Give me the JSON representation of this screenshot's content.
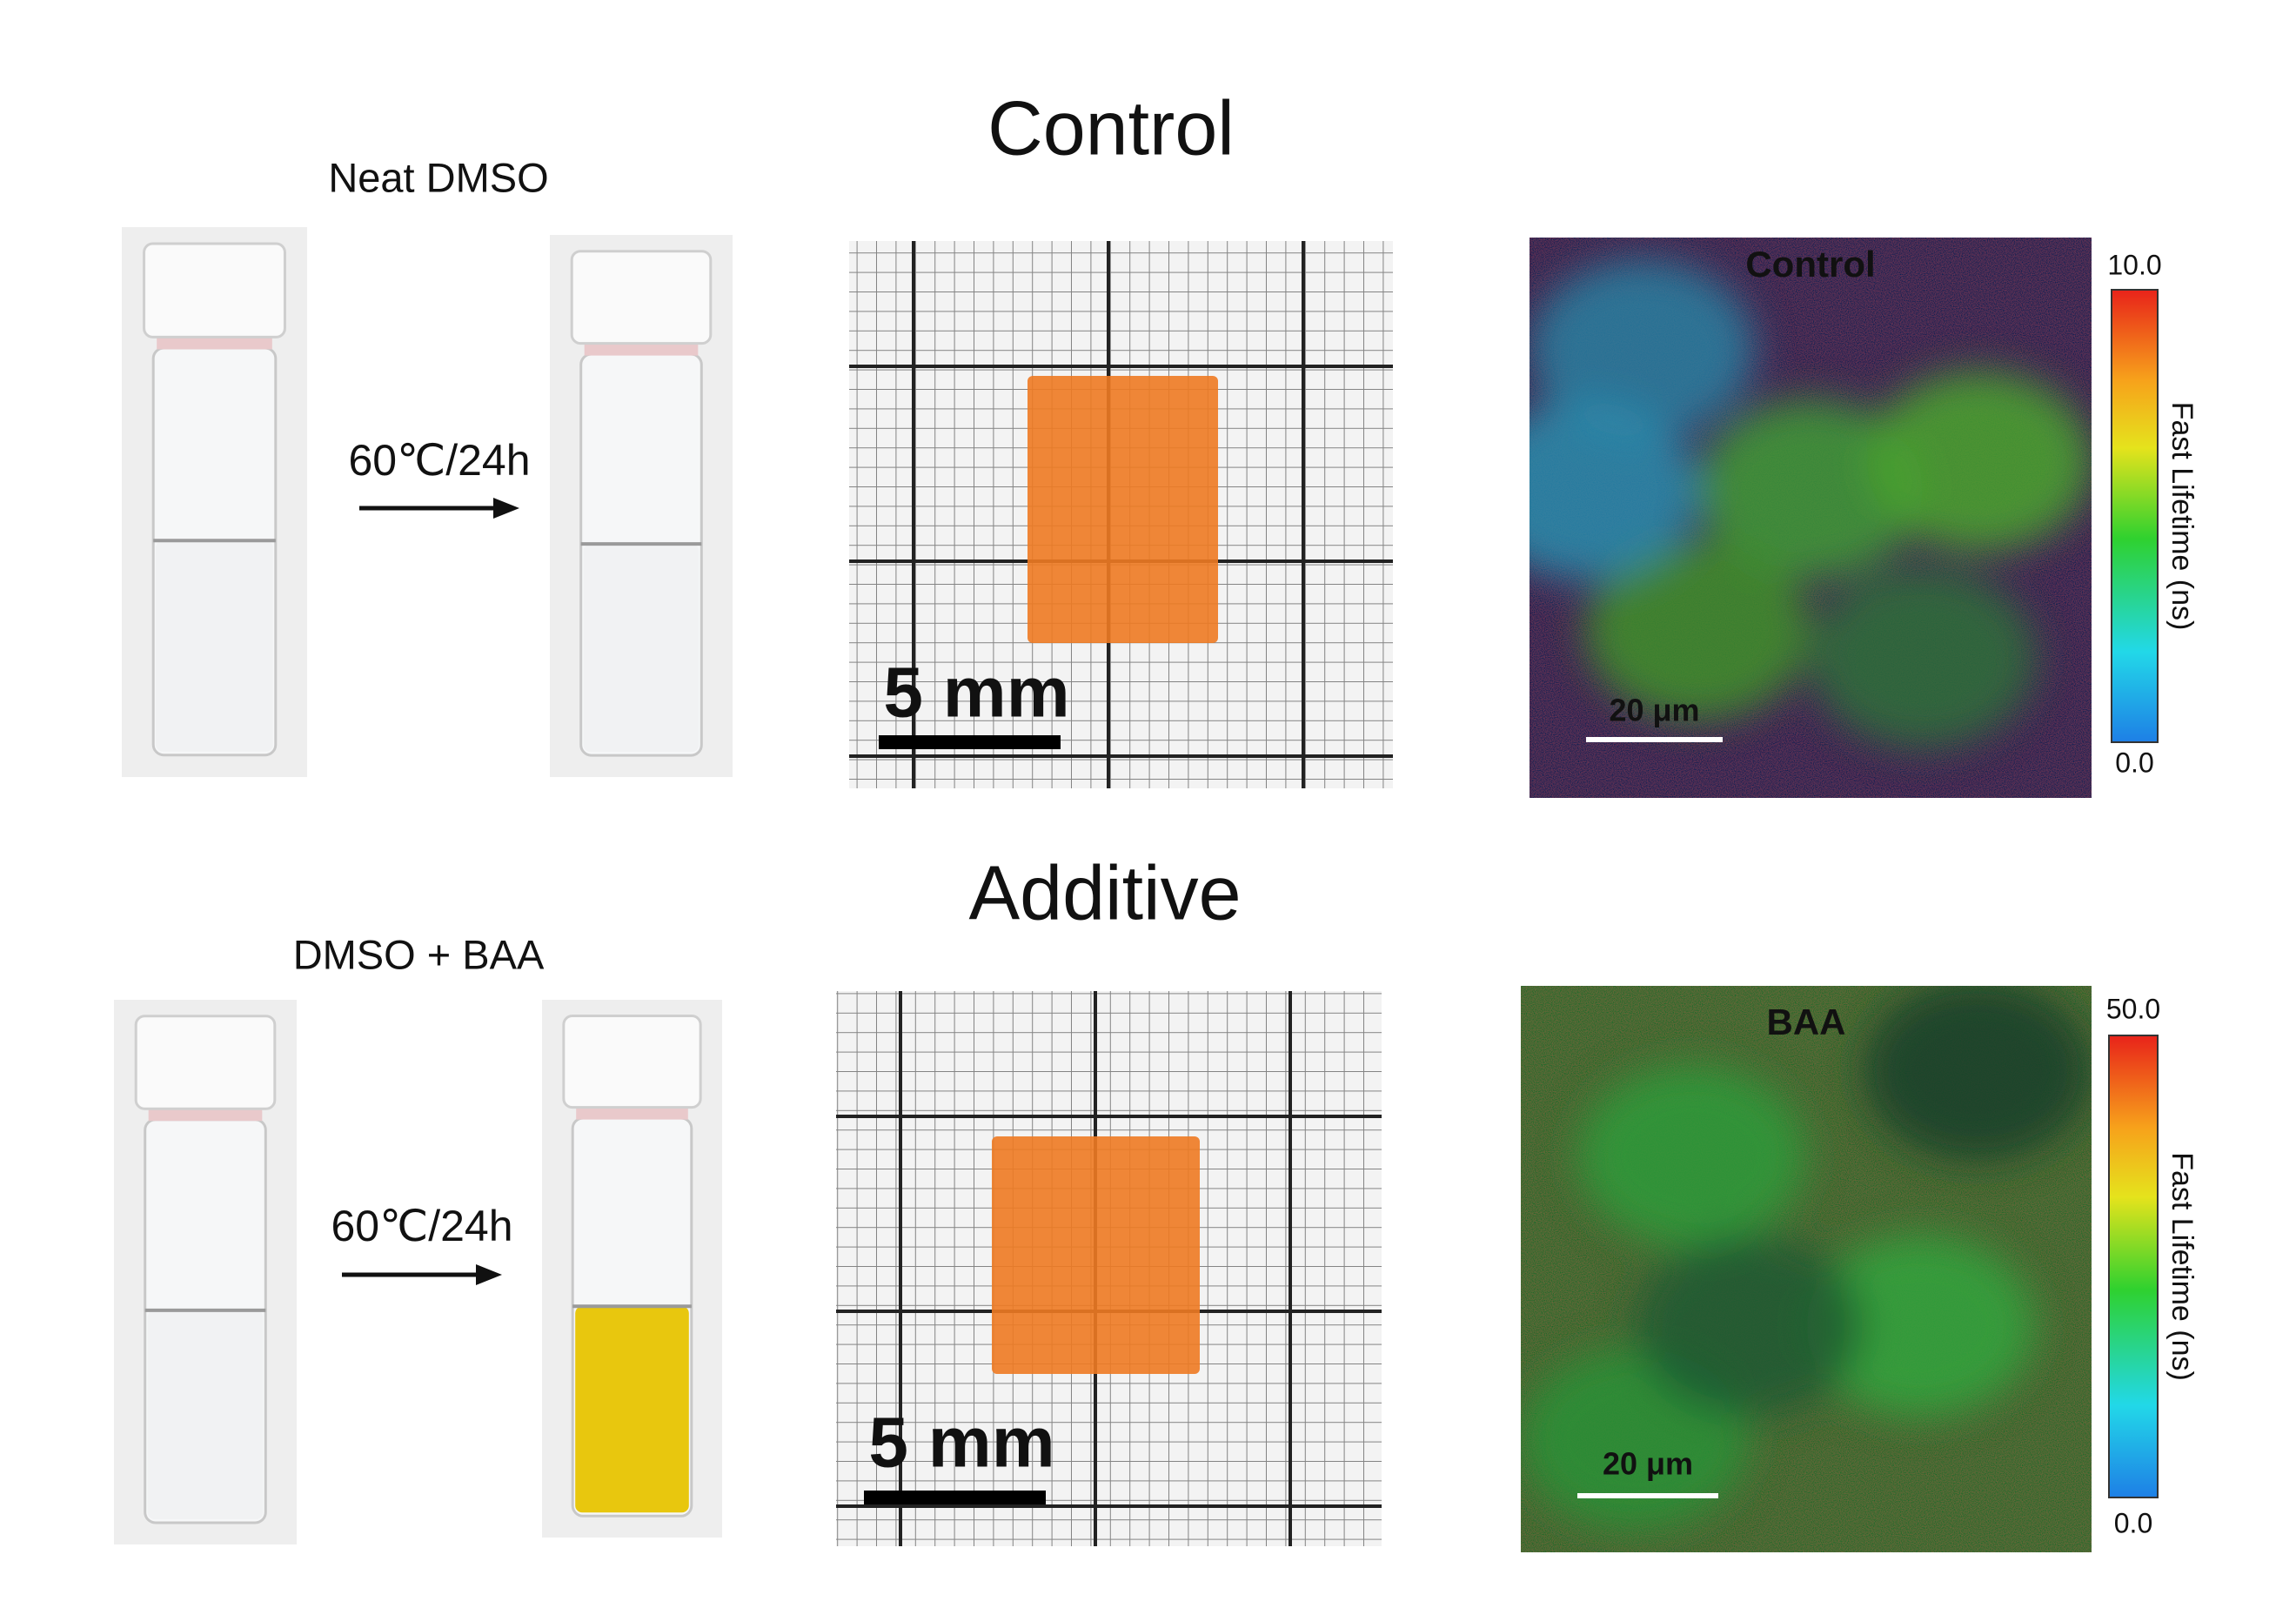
{
  "rows": [
    {
      "title": "Control",
      "vial_label": "Neat DMSO",
      "condition": "60℃/24h",
      "photo_scale": "5 mm",
      "flim_label": "Control",
      "flim_scale": "20 μm",
      "colorbar_max": "10.0",
      "colorbar_min": "0.0",
      "colorbar_label": "Fast Lifetime (ns)"
    },
    {
      "title": "Additive",
      "vial_label": "DMSO + BAA",
      "condition": "60℃/24h",
      "photo_scale": "5 mm",
      "flim_label": "BAA",
      "flim_scale": "20 μm",
      "colorbar_max": "50.0",
      "colorbar_min": "0.0",
      "colorbar_label": "Fast Lifetime (ns)"
    }
  ]
}
